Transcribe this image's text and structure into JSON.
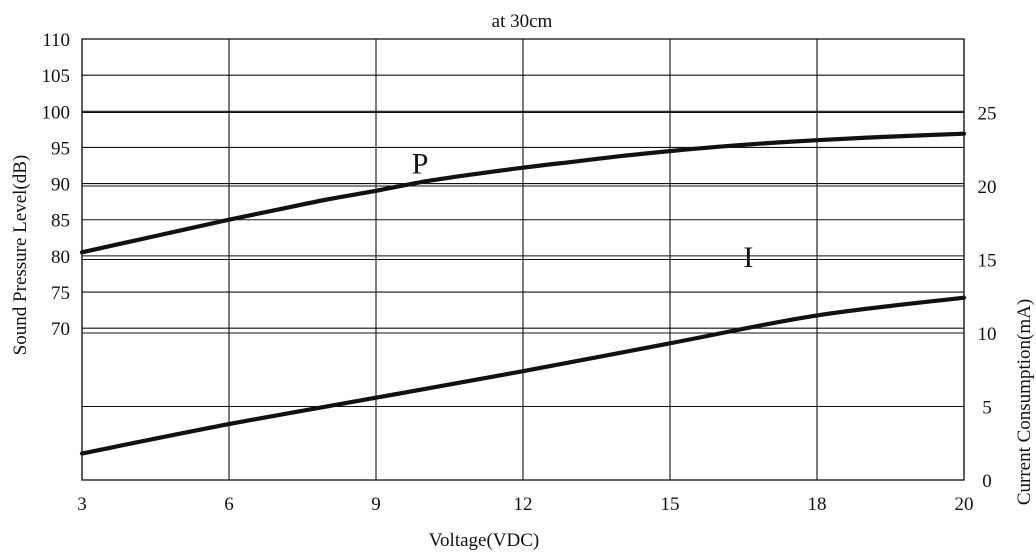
{
  "chart_data": {
    "type": "line",
    "title": "at 30cm",
    "xlabel": "Voltage(VDC)",
    "ylabel_left": "Sound Pressure Level(dB)",
    "ylabel_right": "Current Consumption(mA)",
    "x_ticks": [
      "3",
      "6",
      "9",
      "12",
      "15",
      "18",
      "20"
    ],
    "x_tick_values": [
      3,
      6,
      9,
      12,
      15,
      18,
      20
    ],
    "y_left_ticks": [
      "110",
      "105",
      "100",
      "95",
      "90",
      "85",
      "80",
      "75",
      "70"
    ],
    "y_left_tick_values": [
      110,
      105,
      100,
      95,
      90,
      85,
      80,
      75,
      70
    ],
    "y_left_range": [
      49,
      110
    ],
    "y_right_ticks": [
      "25",
      "20",
      "15",
      "10",
      "5",
      "0"
    ],
    "y_right_tick_values": [
      25,
      20,
      15,
      10,
      5,
      0
    ],
    "y_right_range": [
      0,
      30
    ],
    "grid": true,
    "series": [
      {
        "name": "P",
        "axis": "left",
        "x": [
          3,
          4,
          5,
          6,
          7,
          8,
          9,
          10,
          11,
          12,
          13,
          14,
          15,
          16,
          17,
          18,
          19,
          20
        ],
        "y": [
          80.5,
          82.0,
          83.5,
          85.0,
          86.4,
          87.8,
          89.0,
          90.3,
          91.3,
          92.2,
          93.0,
          93.8,
          94.5,
          95.1,
          95.6,
          96.0,
          96.5,
          96.9
        ]
      },
      {
        "name": "I",
        "axis": "right",
        "x": [
          3,
          6,
          9,
          12,
          15,
          18,
          20
        ],
        "y": [
          1.8,
          3.8,
          5.6,
          7.4,
          9.3,
          11.2,
          12.4
        ]
      }
    ],
    "curve_labels": [
      {
        "text": "P",
        "x": 9.9,
        "y": 91.4,
        "axis": "left"
      },
      {
        "text": "I",
        "x": 16.6,
        "y": 14.5,
        "axis": "right"
      }
    ]
  }
}
